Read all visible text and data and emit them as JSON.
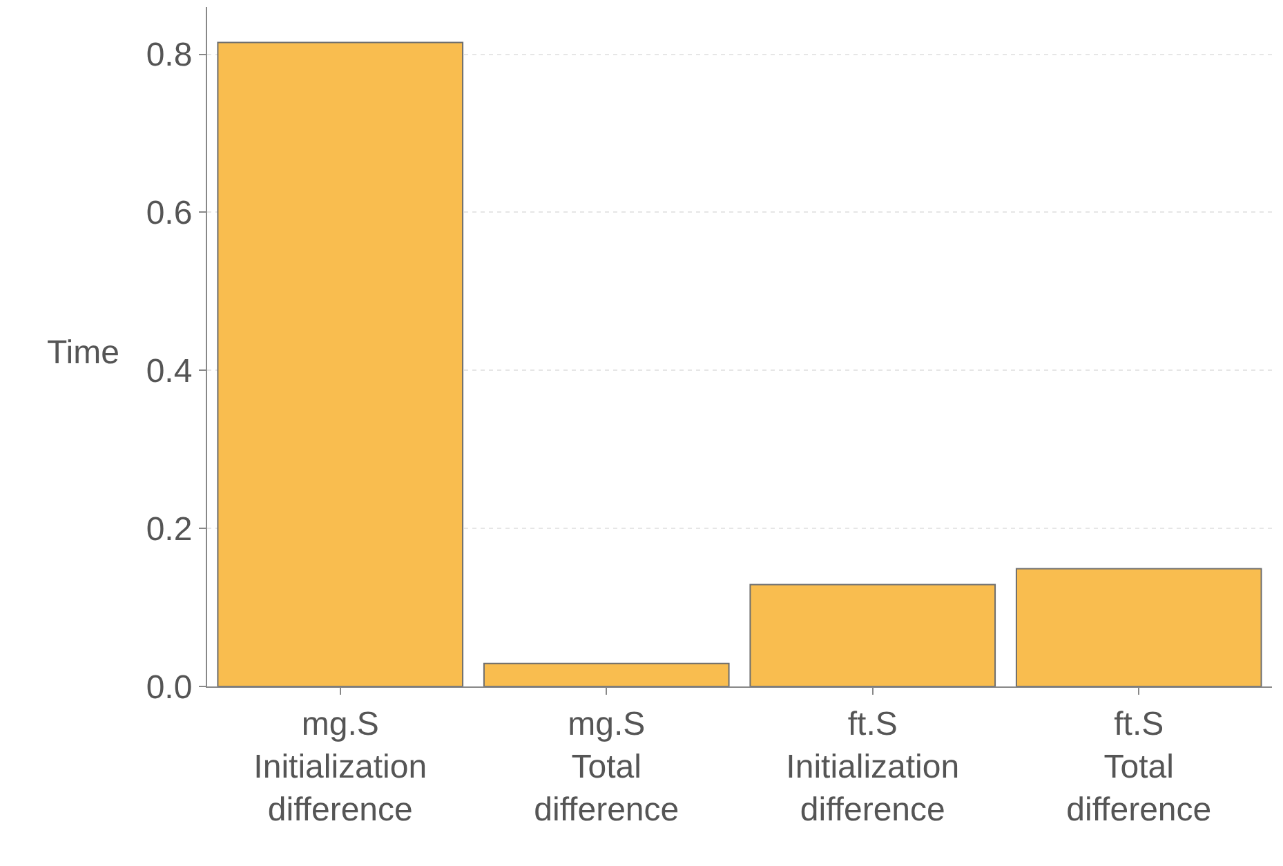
{
  "chart_data": {
    "type": "bar",
    "ylabel": "Time",
    "categories": [
      "mg.S\nInitialization\ndifference",
      "mg.S\nTotal\ndifference",
      "ft.S\nInitialization\ndifference",
      "ft.S\nTotal\ndifference"
    ],
    "values": [
      0.815,
      0.029,
      0.129,
      0.149
    ],
    "color": "#f9bd4f",
    "ylim": [
      0,
      0.86
    ],
    "yticks": [
      {
        "value": 0,
        "label": "0.0"
      },
      {
        "value": 0.2,
        "label": "0.2"
      },
      {
        "value": 0.4,
        "label": "0.4"
      },
      {
        "value": 0.6,
        "label": "0.6"
      },
      {
        "value": 0.8,
        "label": "0.8"
      }
    ],
    "grid": "y"
  }
}
